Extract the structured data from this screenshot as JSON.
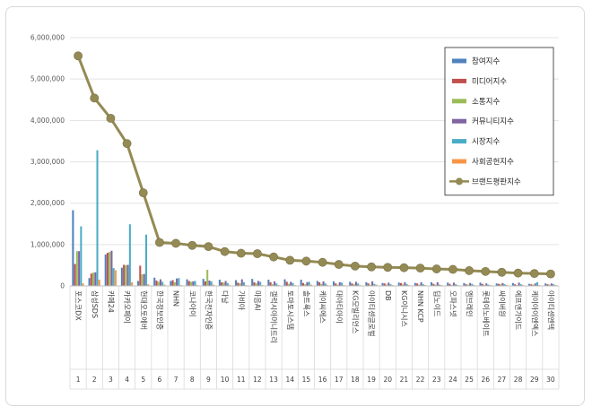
{
  "chart_data": {
    "type": "bar",
    "ylim": [
      0,
      6000000
    ],
    "yticks": [
      "0",
      "1,000,000",
      "2,000,000",
      "3,000,000",
      "4,000,000",
      "5,000,000",
      "6,000,000"
    ],
    "ranks": [
      "1",
      "2",
      "3",
      "4",
      "5",
      "6",
      "7",
      "8",
      "9",
      "10",
      "11",
      "12",
      "13",
      "14",
      "15",
      "16",
      "17",
      "18",
      "19",
      "20",
      "21",
      "22",
      "23",
      "24",
      "25",
      "26",
      "27",
      "28",
      "29",
      "30"
    ],
    "categories": [
      "포스코DX",
      "삼성SDS",
      "카페24",
      "카카오페이",
      "현대오토에버",
      "한국정보인증",
      "NHN",
      "코나아이",
      "한국전자인증",
      "다날",
      "가비아",
      "마음AI",
      "갤럭시아머니트리",
      "토마토시스템",
      "솔트룩스",
      "케이씨에스",
      "대아티아이",
      "KG모빌리언스",
      "아이티센글로벌",
      "DB",
      "KG이니시스",
      "NHN KCP",
      "딥노이드",
      "오파스넷",
      "엠브레인",
      "롯데이노베이트",
      "싸이버원",
      "에프앤가이드",
      "케이아이엔엑스",
      "아이티센엔텍"
    ],
    "series": [
      {
        "name": "참여지수",
        "color": "#4f81bd",
        "values": [
          1830000,
          190000,
          760000,
          440000,
          120000,
          200000,
          120000,
          160000,
          170000,
          150000,
          140000,
          170000,
          150000,
          160000,
          150000,
          120000,
          110000,
          100000,
          90000,
          70000,
          80000,
          70000,
          90000,
          80000,
          70000,
          80000,
          60000,
          70000,
          50000,
          60000
        ]
      },
      {
        "name": "미디어지수",
        "color": "#c0504d",
        "values": [
          530000,
          300000,
          800000,
          510000,
          490000,
          130000,
          140000,
          120000,
          110000,
          90000,
          80000,
          90000,
          90000,
          100000,
          70000,
          90000,
          60000,
          60000,
          60000,
          60000,
          70000,
          60000,
          50000,
          50000,
          40000,
          50000,
          50000,
          40000,
          40000,
          40000
        ]
      },
      {
        "name": "소통지수",
        "color": "#9bbb59",
        "values": [
          840000,
          320000,
          820000,
          500000,
          280000,
          100000,
          90000,
          100000,
          390000,
          80000,
          60000,
          60000,
          40000,
          50000,
          40000,
          50000,
          30000,
          40000,
          30000,
          30000,
          40000,
          30000,
          30000,
          20000,
          30000,
          20000,
          40000,
          20000,
          30000,
          30000
        ]
      },
      {
        "name": "커뮤니티지수",
        "color": "#8064a2",
        "values": [
          840000,
          330000,
          850000,
          510000,
          290000,
          160000,
          180000,
          110000,
          130000,
          120000,
          160000,
          120000,
          110000,
          100000,
          90000,
          110000,
          90000,
          100000,
          110000,
          80000,
          90000,
          90000,
          90000,
          80000,
          70000,
          60000,
          70000,
          80000,
          60000,
          60000
        ]
      },
      {
        "name": "시장지수",
        "color": "#4bacc6",
        "values": [
          1440000,
          3280000,
          430000,
          1490000,
          1240000,
          100000,
          190000,
          120000,
          110000,
          70000,
          90000,
          100000,
          60000,
          70000,
          100000,
          60000,
          80000,
          60000,
          50000,
          40000,
          40000,
          40000,
          30000,
          40000,
          50000,
          30000,
          40000,
          40000,
          90000,
          40000
        ]
      },
      {
        "name": "사회공헌지수",
        "color": "#f79646",
        "values": [
          60000,
          150000,
          380000,
          90000,
          40000,
          30000,
          20000,
          20000,
          30000,
          20000,
          20000,
          20000,
          20000,
          20000,
          30000,
          20000,
          20000,
          20000,
          30000,
          20000,
          20000,
          20000,
          20000,
          20000,
          20000,
          20000,
          20000,
          20000,
          20000,
          20000
        ]
      }
    ],
    "line_series": {
      "name": "브랜드평판지수",
      "color": "#948a54",
      "values": [
        5560000,
        4540000,
        4050000,
        3440000,
        2250000,
        1050000,
        1030000,
        980000,
        950000,
        830000,
        790000,
        780000,
        700000,
        620000,
        600000,
        570000,
        520000,
        480000,
        460000,
        450000,
        440000,
        430000,
        410000,
        400000,
        370000,
        350000,
        330000,
        310000,
        300000,
        290000
      ]
    },
    "legend_position": "right"
  }
}
